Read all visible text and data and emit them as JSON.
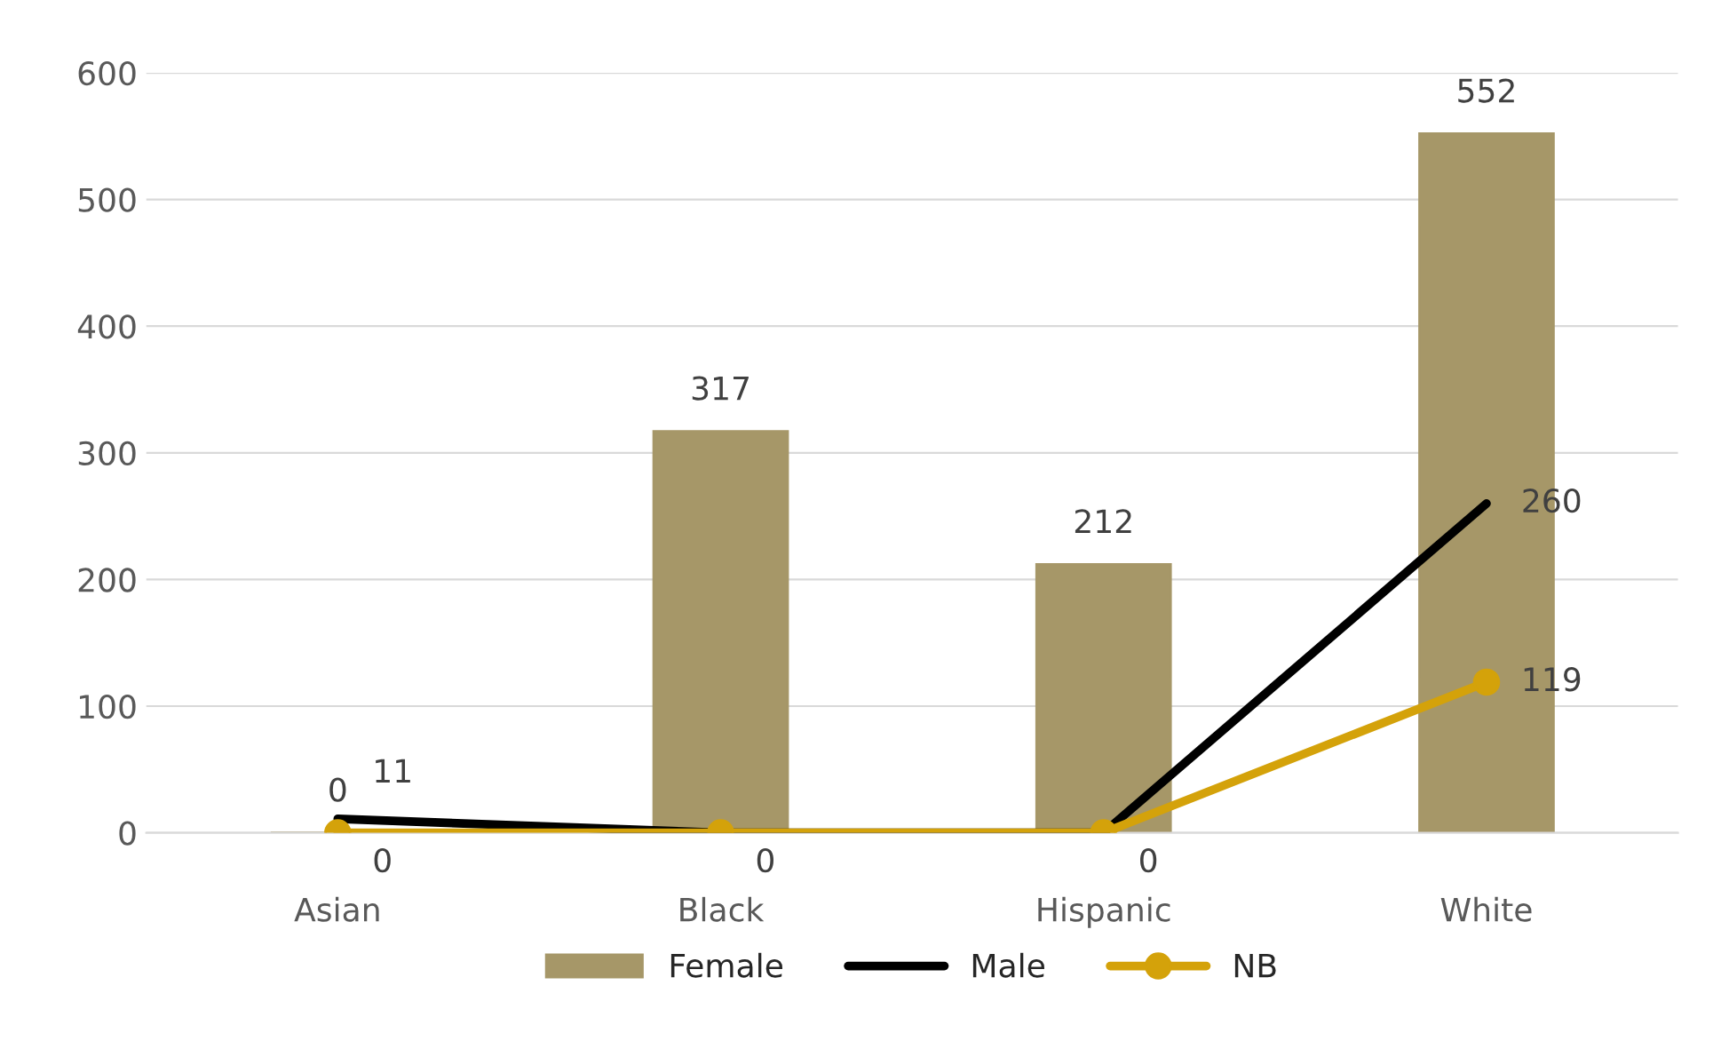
{
  "chart_data": {
    "type": "bar",
    "categories": [
      "Asian",
      "Black",
      "Hispanic",
      "White"
    ],
    "series": [
      {
        "name": "Female",
        "color": "#a69768",
        "values": [
          0,
          317,
          212,
          552
        ],
        "value_labels": [
          "0",
          "317",
          "212",
          "552"
        ]
      },
      {
        "name": "Male",
        "type": "line",
        "color": "#000000",
        "marker": "none",
        "values": [
          11,
          0,
          0,
          260
        ],
        "value_labels": [
          "11",
          null,
          null,
          "260"
        ]
      },
      {
        "name": "NB",
        "type": "line",
        "color": "#d4a20a",
        "marker": "circle",
        "values": [
          0,
          0,
          0,
          119
        ],
        "value_labels": [
          "0",
          "0",
          "0",
          "119"
        ]
      }
    ],
    "ylim": [
      0,
      600
    ],
    "yticks": [
      0,
      100,
      200,
      300,
      400,
      500,
      600
    ],
    "grid": "y",
    "legend": "bottom"
  }
}
